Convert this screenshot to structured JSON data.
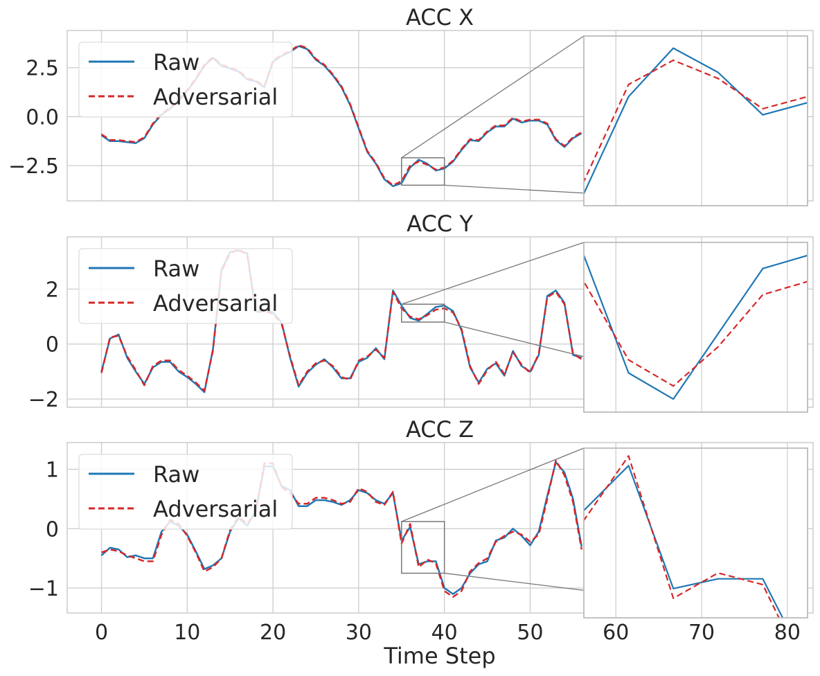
{
  "figure": {
    "xlabel": "Time Step"
  },
  "legend": {
    "raw_label": "Raw",
    "adv_label": "Adversarial",
    "placement": "upper-left"
  },
  "colors": {
    "raw": "#1f77b4",
    "adv": "#d62728",
    "grid": "#cccccc",
    "axis": "#cccccc",
    "zoom": "#777777"
  },
  "chart_data": [
    {
      "type": "line",
      "title": "ACC X",
      "xlim": [
        -4,
        83
      ],
      "ylim": [
        -4.3,
        4.4
      ],
      "xticks": [
        0,
        10,
        20,
        30,
        40,
        50,
        60,
        70,
        80
      ],
      "xtick_labels": [
        "0",
        "10",
        "20",
        "30",
        "40",
        "50",
        "60",
        "70",
        "80"
      ],
      "yticks": [
        2.5,
        0.0,
        -2.5
      ],
      "ytick_labels": [
        "2.5",
        "0.0",
        "−2.5"
      ],
      "x": [
        0,
        1,
        2,
        3,
        4,
        5,
        6,
        7,
        8,
        9,
        10,
        11,
        12,
        13,
        14,
        15,
        16,
        17,
        18,
        19,
        20,
        21,
        22,
        23,
        24,
        25,
        26,
        27,
        28,
        29,
        30,
        31,
        32,
        33,
        34,
        35,
        36,
        37,
        38,
        39,
        40,
        41,
        42,
        43,
        44,
        45,
        46,
        47,
        48,
        49,
        50,
        51,
        52,
        53,
        54,
        55,
        56
      ],
      "series": [
        {
          "name": "Raw",
          "values": [
            -0.95,
            -1.25,
            -1.25,
            -1.3,
            -1.35,
            -1.1,
            -0.4,
            0.1,
            0.4,
            0.8,
            1.3,
            1.9,
            2.6,
            3.0,
            2.6,
            2.45,
            2.3,
            1.9,
            1.8,
            1.5,
            2.8,
            3.1,
            3.3,
            3.6,
            3.45,
            2.9,
            2.6,
            2.1,
            1.5,
            0.6,
            -0.6,
            -1.8,
            -2.4,
            -3.2,
            -3.55,
            -3.4,
            -2.6,
            -2.2,
            -2.4,
            -2.75,
            -2.65,
            -2.3,
            -1.7,
            -1.2,
            -1.25,
            -0.8,
            -0.5,
            -0.5,
            -0.1,
            -0.3,
            -0.2,
            -0.2,
            -0.4,
            -1.2,
            -1.55,
            -1.1,
            -0.85
          ]
        },
        {
          "name": "Adversarial",
          "values": [
            -0.9,
            -1.2,
            -1.2,
            -1.25,
            -1.3,
            -1.05,
            -0.35,
            0.15,
            0.45,
            0.85,
            1.35,
            1.95,
            2.65,
            3.05,
            2.65,
            2.5,
            2.35,
            1.95,
            1.85,
            1.55,
            2.85,
            3.15,
            3.35,
            3.65,
            3.5,
            2.95,
            2.65,
            2.15,
            1.55,
            0.65,
            -0.55,
            -1.75,
            -2.35,
            -3.15,
            -3.5,
            -3.3,
            -2.5,
            -2.3,
            -2.45,
            -2.7,
            -2.6,
            -2.25,
            -1.65,
            -1.15,
            -1.2,
            -0.75,
            -0.45,
            -0.45,
            -0.05,
            -0.25,
            -0.15,
            -0.15,
            -0.35,
            -1.15,
            -1.5,
            -1.05,
            -0.8
          ]
        }
      ],
      "zoom": {
        "xrange": [
          35,
          40
        ],
        "yrange": [
          -3.5,
          -2.1
        ]
      }
    },
    {
      "type": "line",
      "title": "ACC Y",
      "xlim": [
        -4,
        83
      ],
      "ylim": [
        -2.3,
        3.9
      ],
      "xticks": [
        0,
        10,
        20,
        30,
        40,
        50,
        60,
        70,
        80
      ],
      "xtick_labels": [
        "0",
        "10",
        "20",
        "30",
        "40",
        "50",
        "60",
        "70",
        "80"
      ],
      "yticks": [
        2,
        0,
        -2
      ],
      "ytick_labels": [
        "2",
        "0",
        "−2"
      ],
      "x": [
        0,
        1,
        2,
        3,
        4,
        5,
        6,
        7,
        8,
        9,
        10,
        11,
        12,
        13,
        14,
        15,
        16,
        17,
        18,
        19,
        20,
        21,
        22,
        23,
        24,
        25,
        26,
        27,
        28,
        29,
        30,
        31,
        32,
        33,
        34,
        35,
        36,
        37,
        38,
        39,
        40,
        41,
        42,
        43,
        44,
        45,
        46,
        47,
        48,
        49,
        50,
        51,
        52,
        53,
        54,
        55,
        56
      ],
      "series": [
        {
          "name": "Raw",
          "values": [
            -1.0,
            0.2,
            0.35,
            -0.5,
            -1.0,
            -1.45,
            -0.85,
            -0.65,
            -0.65,
            -1.0,
            -1.2,
            -1.45,
            -1.75,
            -0.2,
            2.7,
            3.35,
            3.4,
            3.3,
            1.2,
            1.25,
            1.15,
            0.8,
            -0.5,
            -1.55,
            -1.05,
            -0.75,
            -0.55,
            -0.85,
            -1.25,
            -1.25,
            -0.65,
            -0.5,
            -0.15,
            -0.55,
            1.95,
            1.4,
            0.95,
            0.85,
            1.1,
            1.35,
            1.4,
            1.2,
            0.5,
            -0.85,
            -1.4,
            -0.9,
            -0.7,
            -1.15,
            -0.25,
            -0.8,
            -1.0,
            -0.4,
            1.75,
            1.95,
            1.5,
            -0.4,
            -0.5
          ]
        },
        {
          "name": "Adversarial",
          "values": [
            -1.05,
            0.25,
            0.3,
            -0.45,
            -0.95,
            -1.5,
            -0.8,
            -0.6,
            -0.6,
            -0.95,
            -1.15,
            -1.4,
            -1.7,
            -0.25,
            2.65,
            3.3,
            3.45,
            3.25,
            1.15,
            1.2,
            1.1,
            0.75,
            -0.45,
            -1.5,
            -1.0,
            -0.7,
            -0.6,
            -0.8,
            -1.2,
            -1.3,
            -0.6,
            -0.45,
            -0.2,
            -0.5,
            1.9,
            1.3,
            1.0,
            0.9,
            1.05,
            1.25,
            1.3,
            1.15,
            0.55,
            -0.8,
            -1.45,
            -0.95,
            -0.65,
            -1.1,
            -0.3,
            -0.75,
            -1.05,
            -0.35,
            1.7,
            1.9,
            1.45,
            -0.35,
            -0.55
          ]
        }
      ],
      "zoom": {
        "xrange": [
          35,
          40
        ],
        "yrange": [
          0.8,
          1.45
        ]
      }
    },
    {
      "type": "line",
      "title": "ACC Z",
      "xlim": [
        -4,
        83
      ],
      "ylim": [
        -1.42,
        1.45
      ],
      "xticks": [
        0,
        10,
        20,
        30,
        40,
        50,
        60,
        70,
        80
      ],
      "xtick_labels": [
        "0",
        "10",
        "20",
        "30",
        "40",
        "50",
        "60",
        "70",
        "80"
      ],
      "yticks": [
        1,
        0,
        -1
      ],
      "ytick_labels": [
        "1",
        "0",
        "−1"
      ],
      "x": [
        0,
        1,
        2,
        3,
        4,
        5,
        6,
        7,
        8,
        9,
        10,
        11,
        12,
        13,
        14,
        15,
        16,
        17,
        18,
        19,
        20,
        21,
        22,
        23,
        24,
        25,
        26,
        27,
        28,
        29,
        30,
        31,
        32,
        33,
        34,
        35,
        36,
        37,
        38,
        39,
        40,
        41,
        42,
        43,
        44,
        45,
        46,
        47,
        48,
        49,
        50,
        51,
        52,
        53,
        54,
        55,
        56
      ],
      "series": [
        {
          "name": "Raw",
          "values": [
            -0.45,
            -0.32,
            -0.35,
            -0.48,
            -0.45,
            -0.5,
            -0.5,
            -0.05,
            0.12,
            0.05,
            -0.1,
            -0.38,
            -0.68,
            -0.62,
            -0.5,
            -0.05,
            0.18,
            0.05,
            0.3,
            1.05,
            1.05,
            0.72,
            0.65,
            0.38,
            0.38,
            0.48,
            0.48,
            0.45,
            0.4,
            0.48,
            0.65,
            0.6,
            0.48,
            0.42,
            0.6,
            -0.2,
            0.03,
            -0.6,
            -0.55,
            -0.55,
            -1.0,
            -1.1,
            -1.0,
            -0.75,
            -0.6,
            -0.55,
            -0.2,
            -0.15,
            0.0,
            -0.12,
            -0.28,
            -0.05,
            0.55,
            1.12,
            0.95,
            0.5,
            -0.3
          ]
        },
        {
          "name": "Adversarial",
          "values": [
            -0.4,
            -0.35,
            -0.38,
            -0.45,
            -0.5,
            -0.55,
            -0.55,
            -0.1,
            0.15,
            0.08,
            -0.12,
            -0.4,
            -0.72,
            -0.65,
            -0.5,
            -0.02,
            0.2,
            0.08,
            0.28,
            1.1,
            1.1,
            0.7,
            0.6,
            0.42,
            0.42,
            0.52,
            0.52,
            0.48,
            0.42,
            0.45,
            0.68,
            0.62,
            0.45,
            0.4,
            0.62,
            -0.25,
            0.08,
            -0.65,
            -0.52,
            -0.58,
            -1.05,
            -1.15,
            -1.05,
            -0.72,
            -0.58,
            -0.5,
            -0.22,
            -0.12,
            -0.05,
            -0.1,
            -0.22,
            -0.1,
            0.5,
            1.15,
            0.9,
            0.45,
            -0.35
          ]
        }
      ],
      "zoom": {
        "xrange": [
          35,
          40
        ],
        "yrange": [
          -0.75,
          0.12
        ]
      }
    }
  ]
}
